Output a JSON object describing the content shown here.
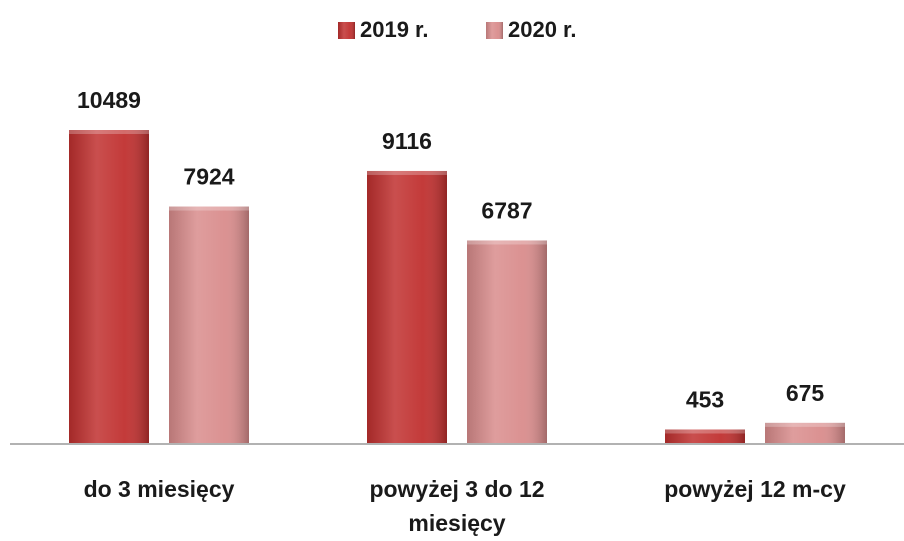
{
  "chart_data": {
    "type": "bar",
    "categories": [
      "do 3 miesięcy",
      "powyżej 3 do 12 miesięcy",
      "powyżej 12 m-cy"
    ],
    "series": [
      {
        "name": "2019 r.",
        "color": "#c0302f",
        "values": [
          10489,
          9116,
          453
        ]
      },
      {
        "name": "2020 r.",
        "color": "#d98c8c",
        "values": [
          7924,
          6787,
          675
        ]
      }
    ],
    "legend": "top"
  }
}
